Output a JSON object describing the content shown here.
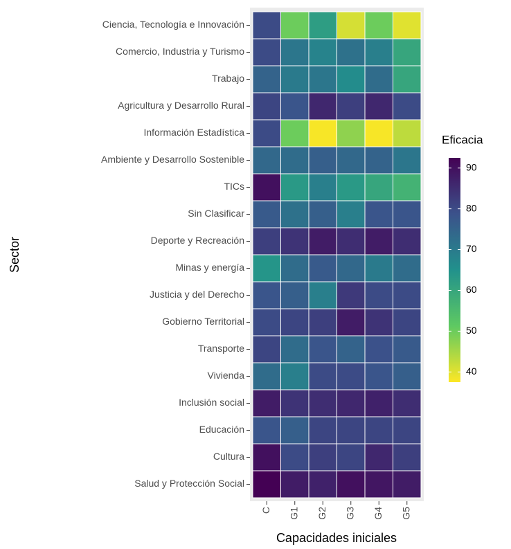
{
  "chart_data": {
    "type": "heatmap",
    "x_label": "Capacidades iniciales",
    "y_label": "Sector",
    "legend_title": "Eficacia",
    "x_categories": [
      "C",
      "G1",
      "G2",
      "G3",
      "G4",
      "G5"
    ],
    "y_categories": [
      "Ciencia, Tecnología e Innovación",
      "Comercio, Industria y Turismo",
      "Trabajo",
      "Agricultura y Desarrollo Rural",
      "Información Estadística",
      "Ambiente y Desarrollo Sostenible",
      "TICs",
      "Sin Clasificar",
      "Deporte y Recreación",
      "Minas y energía",
      "Justicia y del Derecho",
      "Gobierno Territorial",
      "Transporte",
      "Vivienda",
      "Inclusión social",
      "Educación",
      "Cultura",
      "Salud y Protección Social"
    ],
    "values": [
      [
        80,
        50,
        62,
        41,
        50,
        40
      ],
      [
        80,
        71,
        68,
        72,
        69,
        60
      ],
      [
        75,
        70,
        71,
        66,
        73,
        60
      ],
      [
        81,
        78,
        86,
        82,
        86,
        80
      ],
      [
        80,
        50,
        38,
        47,
        38,
        43
      ],
      [
        74,
        73,
        76,
        74,
        75,
        71
      ],
      [
        90,
        63,
        69,
        63,
        60,
        57
      ],
      [
        77,
        72,
        76,
        69,
        78,
        78
      ],
      [
        82,
        84,
        88,
        85,
        88,
        85
      ],
      [
        64,
        73,
        77,
        74,
        70,
        73
      ],
      [
        78,
        76,
        69,
        83,
        80,
        80
      ],
      [
        80,
        81,
        82,
        88,
        84,
        81
      ],
      [
        81,
        73,
        78,
        75,
        79,
        77
      ],
      [
        73,
        69,
        80,
        80,
        78,
        76
      ],
      [
        88,
        84,
        85,
        86,
        87,
        85
      ],
      [
        78,
        76,
        81,
        81,
        81,
        81
      ],
      [
        90,
        80,
        82,
        81,
        86,
        82
      ],
      [
        92.5,
        88,
        87,
        90,
        89,
        88
      ]
    ],
    "zlim": [
      37.5,
      92.5
    ],
    "zticks": [
      40,
      50,
      60,
      70,
      80,
      90
    ],
    "colorscale": [
      "#fde725",
      "#5ec962",
      "#21918c",
      "#3b528b",
      "#440154"
    ]
  }
}
